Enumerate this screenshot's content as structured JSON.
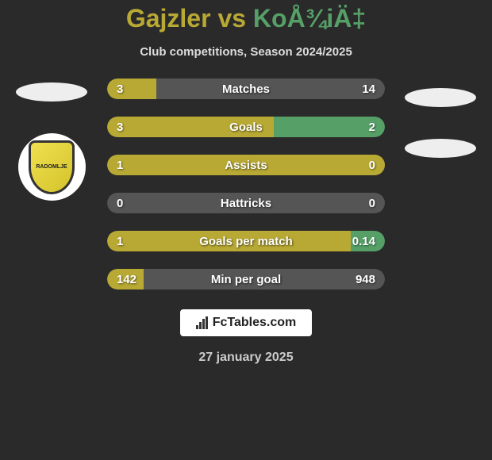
{
  "header": {
    "player_left": "Gajzler",
    "vs": "vs",
    "player_right": "KoÅ¾iÄ‡"
  },
  "subtitle": "Club competitions, Season 2024/2025",
  "colors": {
    "left": "#b8a934",
    "right": "#56a068",
    "gray": "#555555",
    "background": "#2a2a2a"
  },
  "stats": [
    {
      "label": "Matches",
      "left_value": "3",
      "right_value": "14",
      "left_pct": 17.6,
      "right_pct": 82.4,
      "left_color": "#b8a934",
      "right_color": "#555555"
    },
    {
      "label": "Goals",
      "left_value": "3",
      "right_value": "2",
      "left_pct": 60,
      "right_pct": 40,
      "left_color": "#b8a934",
      "right_color": "#56a068"
    },
    {
      "label": "Assists",
      "left_value": "1",
      "right_value": "0",
      "left_pct": 100,
      "right_pct": 0,
      "left_color": "#b8a934",
      "right_color": "#56a068"
    },
    {
      "label": "Hattricks",
      "left_value": "0",
      "right_value": "0",
      "left_pct": 50,
      "right_pct": 50,
      "left_color": "#555555",
      "right_color": "#555555"
    },
    {
      "label": "Goals per match",
      "left_value": "1",
      "right_value": "0.14",
      "left_pct": 87.7,
      "right_pct": 12.3,
      "left_color": "#b8a934",
      "right_color": "#56a068"
    },
    {
      "label": "Min per goal",
      "left_value": "142",
      "right_value": "948",
      "left_pct": 13,
      "right_pct": 87,
      "left_color": "#b8a934",
      "right_color": "#555555"
    }
  ],
  "badge_text": "RADOMLJE",
  "footer": {
    "brand": "FcTables.com"
  },
  "date": "27 january 2025"
}
